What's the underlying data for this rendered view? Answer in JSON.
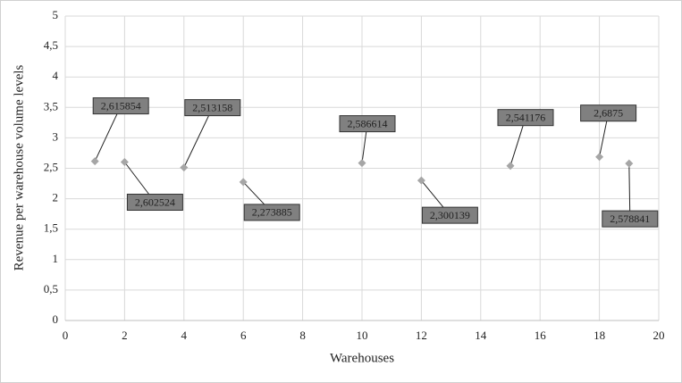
{
  "chart_data": {
    "type": "scatter",
    "x_label": "Warehouses",
    "y_label": "Revenue per warehouse volume levels",
    "color": "#a6a6a6",
    "grid": true,
    "series": [
      {
        "name": "Revenue",
        "x": [
          1,
          2,
          4,
          6,
          10,
          12,
          15,
          18,
          19
        ],
        "values": [
          2.615854,
          2.602524,
          2.513158,
          2.273885,
          2.586614,
          2.300139,
          2.541176,
          2.6875,
          2.578841
        ],
        "value_labels": [
          "2,615854",
          "2,602524",
          "2,513158",
          "2,273885",
          "2,586614",
          "2,300139",
          "2,541176",
          "2,6875",
          "2,578841"
        ]
      }
    ],
    "xlim": [
      0,
      20
    ],
    "xticks": [
      0,
      2,
      4,
      6,
      8,
      10,
      12,
      14,
      16,
      18,
      20
    ],
    "ylim": [
      0,
      5
    ],
    "yticks": [
      0,
      {
        "value": 0.5,
        "label": "0,5"
      },
      1,
      {
        "value": 1.5,
        "label": "1,5"
      },
      2,
      {
        "value": 2.5,
        "label": "2,5"
      },
      3,
      {
        "value": 3.5,
        "label": "3,5"
      },
      4,
      {
        "value": 4.5,
        "label": "4,5"
      },
      5
    ]
  }
}
